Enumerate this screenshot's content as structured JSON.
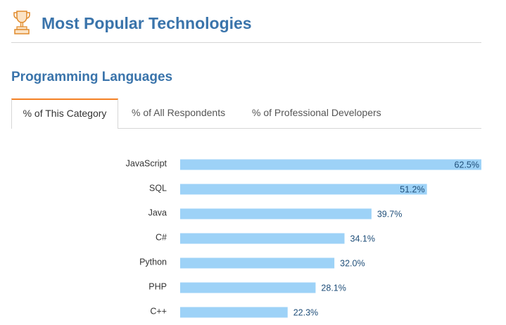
{
  "header": {
    "icon": "trophy-icon",
    "title": "Most Popular Technologies"
  },
  "section": {
    "title": "Programming Languages"
  },
  "tabs": [
    {
      "label": "% of This Category",
      "active": true
    },
    {
      "label": "% of All Respondents",
      "active": false
    },
    {
      "label": "% of Professional Developers",
      "active": false
    }
  ],
  "colors": {
    "accent": "#3a74ab",
    "tab_active_border": "#f48024",
    "bar": "#9dd2f7",
    "value_text": "#1f4e79"
  },
  "chart_data": {
    "type": "bar",
    "orientation": "horizontal",
    "categories": [
      "JavaScript",
      "SQL",
      "Java",
      "C#",
      "Python",
      "PHP",
      "C++"
    ],
    "values": [
      62.5,
      51.2,
      39.7,
      34.1,
      32.0,
      28.1,
      22.3
    ],
    "value_labels": [
      "62.5%",
      "51.2%",
      "39.7%",
      "34.1%",
      "32.0%",
      "28.1%",
      "22.3%"
    ],
    "unit": "%",
    "xlim": [
      0,
      62.5
    ],
    "grid": false,
    "legend": "none"
  }
}
